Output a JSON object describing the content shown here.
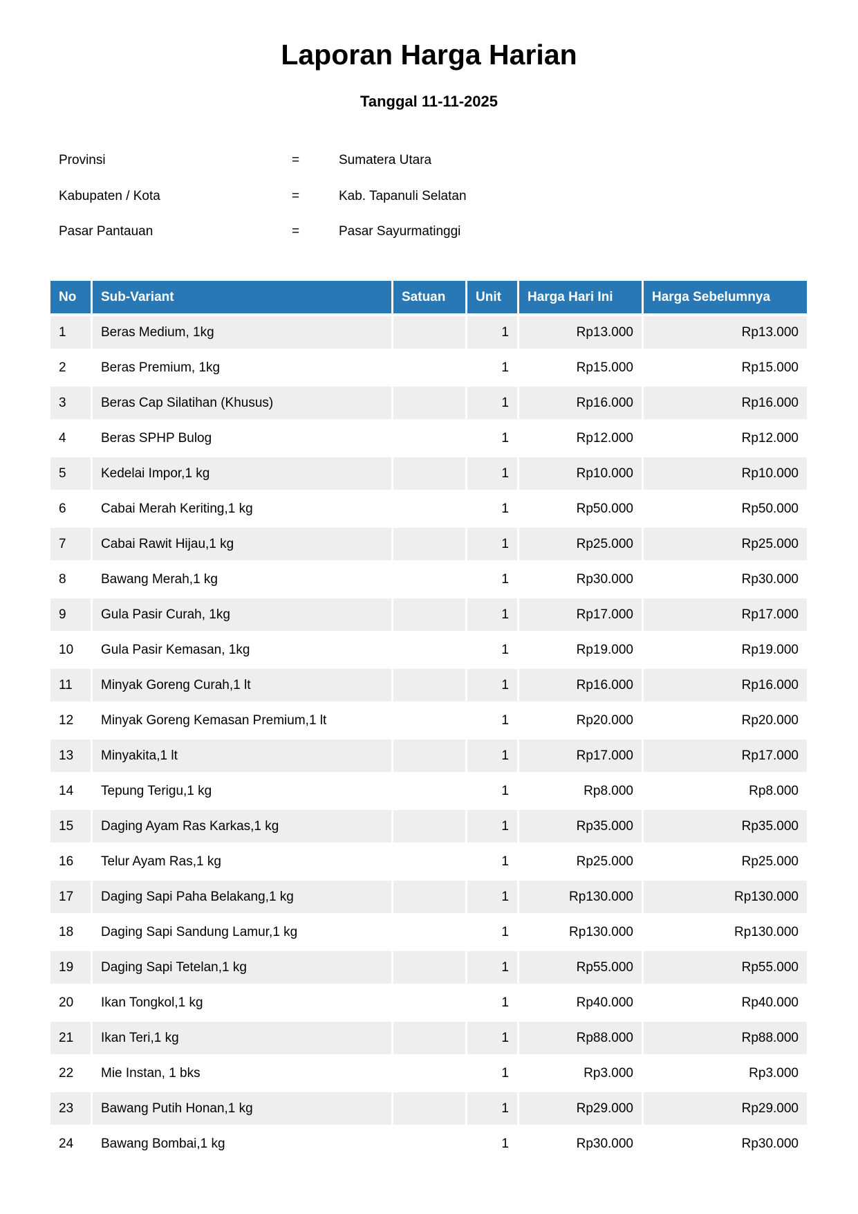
{
  "title": "Laporan Harga Harian",
  "subtitle": "Tanggal 11-11-2025",
  "info": [
    {
      "label": "Provinsi",
      "sep": "=",
      "value": "Sumatera Utara"
    },
    {
      "label": "Kabupaten / Kota",
      "sep": "=",
      "value": "Kab. Tapanuli Selatan"
    },
    {
      "label": "Pasar Pantauan",
      "sep": "=",
      "value": "Pasar Sayurmatinggi"
    }
  ],
  "colors": {
    "header": "#2878b5",
    "stripe": "#eeeeee"
  },
  "table": {
    "headers": [
      "No",
      "Sub-Variant",
      "Satuan",
      "Unit",
      "Harga Hari Ini",
      "Harga Sebelumnya"
    ],
    "rows": [
      [
        "1",
        "Beras Medium, 1kg",
        "",
        "1",
        "Rp13.000",
        "Rp13.000"
      ],
      [
        "2",
        "Beras Premium, 1kg",
        "",
        "1",
        "Rp15.000",
        "Rp15.000"
      ],
      [
        "3",
        "Beras Cap Silatihan (Khusus)",
        "",
        "1",
        "Rp16.000",
        "Rp16.000"
      ],
      [
        "4",
        "Beras SPHP Bulog",
        "",
        "1",
        "Rp12.000",
        "Rp12.000"
      ],
      [
        "5",
        "Kedelai Impor,1 kg",
        "",
        "1",
        "Rp10.000",
        "Rp10.000"
      ],
      [
        "6",
        "Cabai Merah Keriting,1 kg",
        "",
        "1",
        "Rp50.000",
        "Rp50.000"
      ],
      [
        "7",
        "Cabai Rawit Hijau,1 kg",
        "",
        "1",
        "Rp25.000",
        "Rp25.000"
      ],
      [
        "8",
        "Bawang Merah,1 kg",
        "",
        "1",
        "Rp30.000",
        "Rp30.000"
      ],
      [
        "9",
        "Gula Pasir Curah, 1kg",
        "",
        "1",
        "Rp17.000",
        "Rp17.000"
      ],
      [
        "10",
        "Gula Pasir Kemasan, 1kg",
        "",
        "1",
        "Rp19.000",
        "Rp19.000"
      ],
      [
        "11",
        "Minyak Goreng Curah,1 lt",
        "",
        "1",
        "Rp16.000",
        "Rp16.000"
      ],
      [
        "12",
        "Minyak Goreng Kemasan Premium,1 lt",
        "",
        "1",
        "Rp20.000",
        "Rp20.000"
      ],
      [
        "13",
        "Minyakita,1 lt",
        "",
        "1",
        "Rp17.000",
        "Rp17.000"
      ],
      [
        "14",
        "Tepung Terigu,1 kg",
        "",
        "1",
        "Rp8.000",
        "Rp8.000"
      ],
      [
        "15",
        "Daging Ayam Ras Karkas,1 kg",
        "",
        "1",
        "Rp35.000",
        "Rp35.000"
      ],
      [
        "16",
        "Telur Ayam Ras,1 kg",
        "",
        "1",
        "Rp25.000",
        "Rp25.000"
      ],
      [
        "17",
        "Daging Sapi Paha Belakang,1 kg",
        "",
        "1",
        "Rp130.000",
        "Rp130.000"
      ],
      [
        "18",
        "Daging Sapi Sandung Lamur,1 kg",
        "",
        "1",
        "Rp130.000",
        "Rp130.000"
      ],
      [
        "19",
        "Daging Sapi Tetelan,1 kg",
        "",
        "1",
        "Rp55.000",
        "Rp55.000"
      ],
      [
        "20",
        "Ikan Tongkol,1 kg",
        "",
        "1",
        "Rp40.000",
        "Rp40.000"
      ],
      [
        "21",
        "Ikan Teri,1 kg",
        "",
        "1",
        "Rp88.000",
        "Rp88.000"
      ],
      [
        "22",
        "Mie Instan, 1 bks",
        "",
        "1",
        "Rp3.000",
        "Rp3.000"
      ],
      [
        "23",
        "Bawang Putih Honan,1 kg",
        "",
        "1",
        "Rp29.000",
        "Rp29.000"
      ],
      [
        "24",
        "Bawang Bombai,1 kg",
        "",
        "1",
        "Rp30.000",
        "Rp30.000"
      ]
    ]
  }
}
